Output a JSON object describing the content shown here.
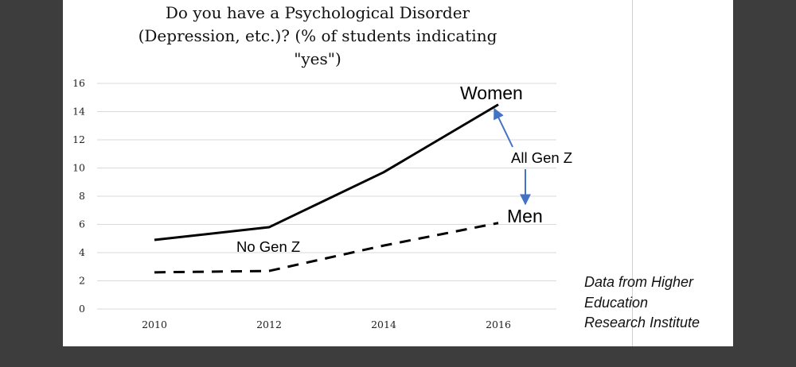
{
  "chart_data": {
    "type": "line",
    "title_lines": [
      "Do you have a Psychological Disorder",
      "(Depression, etc.)? (% of students indicating",
      "\"yes\")"
    ],
    "xlabel": "",
    "ylabel": "",
    "x": [
      2010,
      2012,
      2014,
      2016
    ],
    "x_tick_labels": [
      "2010",
      "2012",
      "2014",
      "2016"
    ],
    "y_tick_labels": [
      "0",
      "2",
      "4",
      "6",
      "8",
      "10",
      "12",
      "14",
      "16"
    ],
    "ylim": [
      0,
      16
    ],
    "grid": true,
    "series": [
      {
        "name": "Women",
        "values": [
          4.9,
          5.8,
          9.7,
          14.5
        ],
        "style": "solid",
        "color": "#000000"
      },
      {
        "name": "Men",
        "values": [
          2.6,
          2.7,
          4.5,
          6.1
        ],
        "style": "dashed",
        "color": "#000000"
      }
    ],
    "annotations": {
      "women_label": "Women",
      "men_label": "Men",
      "all_gen_z": "All Gen Z",
      "no_gen_z": "No Gen Z"
    },
    "arrow_color": "#4472c4"
  },
  "source_lines": [
    "Data from Higher",
    "Education",
    "Research Institute"
  ]
}
